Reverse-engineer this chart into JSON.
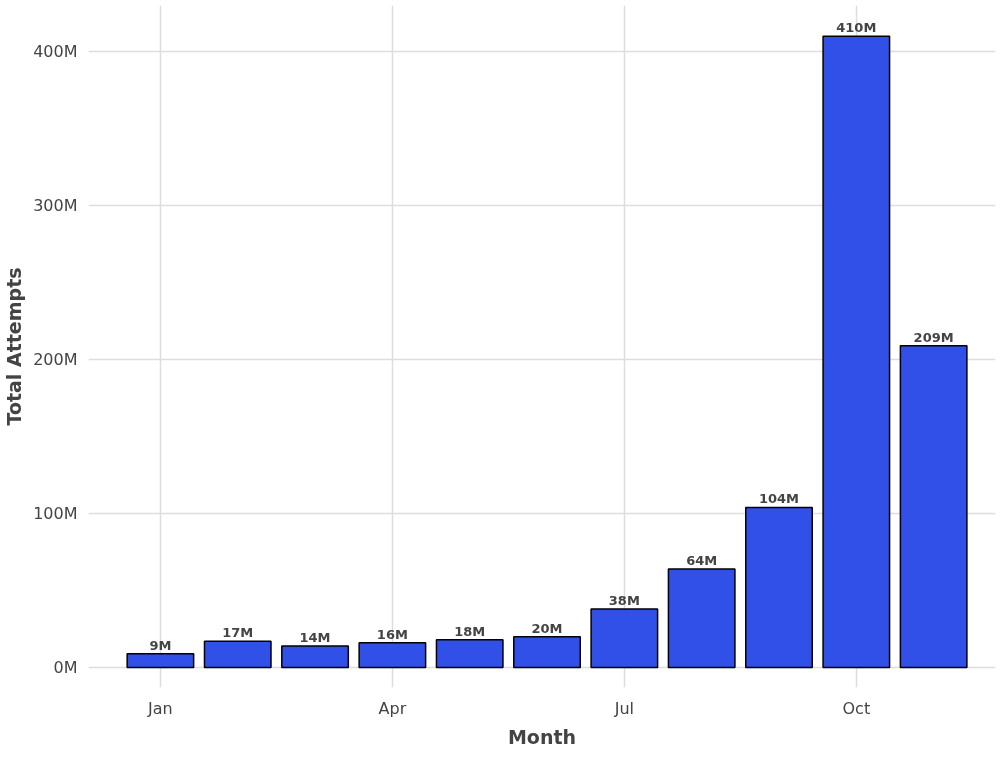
{
  "chart_data": {
    "type": "bar",
    "xlabel": "Month",
    "ylabel": "Total Attempts",
    "categories": [
      "Jan",
      null,
      null,
      "Apr",
      null,
      null,
      "Jul",
      null,
      null,
      "Oct",
      null
    ],
    "values": [
      9,
      17,
      14,
      16,
      18,
      20,
      38,
      64,
      104,
      410,
      209
    ],
    "value_labels": [
      "9M",
      "17M",
      "14M",
      "16M",
      "18M",
      "20M",
      "38M",
      "64M",
      "104M",
      "410M",
      "209M"
    ],
    "color": "#3050e8",
    "ylim": [
      -13,
      430
    ],
    "yticks": [
      {
        "value": 0,
        "label": "0M"
      },
      {
        "value": 100,
        "label": "100M"
      },
      {
        "value": 200,
        "label": "200M"
      },
      {
        "value": 300,
        "label": "300M"
      },
      {
        "value": 400,
        "label": "400M"
      }
    ],
    "grid": true
  }
}
